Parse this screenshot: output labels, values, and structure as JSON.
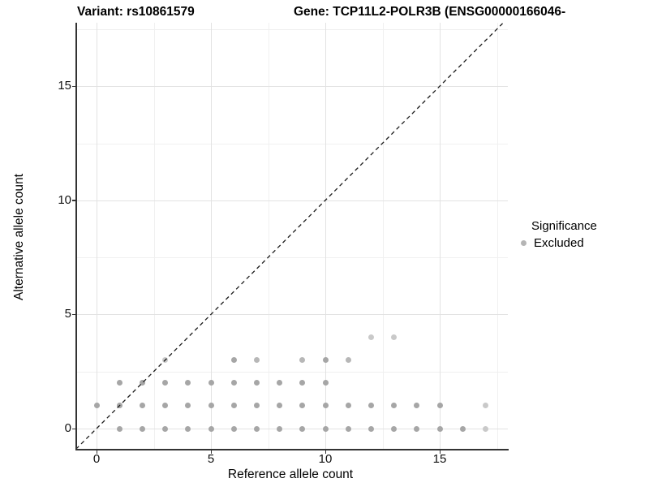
{
  "titles": {
    "left": "Variant: rs10861579",
    "right": "Gene: TCP11L2-POLR3B (ENSG00000166046-"
  },
  "chart_data": {
    "type": "scatter",
    "title_left": "Variant: rs10861579",
    "title_right": "Gene: TCP11L2-POLR3B (ENSG00000166046-",
    "xlabel": "Reference allele count",
    "ylabel": "Alternative allele count",
    "x_ticks": [
      0,
      5,
      10,
      15
    ],
    "y_ticks": [
      0,
      5,
      10,
      15
    ],
    "x_minor_gridlines": [
      2.5,
      7.5,
      12.5,
      17.5
    ],
    "y_minor_gridlines": [
      2.5,
      7.5,
      12.5,
      17.5
    ],
    "xlim": [
      -0.9,
      17.9
    ],
    "ylim": [
      -0.9,
      17.75
    ],
    "grid": true,
    "reference_line": {
      "kind": "identity-diagonal",
      "style": "dashed",
      "from": [
        -0.9,
        -0.9
      ],
      "to": [
        17.75,
        17.75
      ],
      "color": "#1a1a1a"
    },
    "legend": {
      "position": "right",
      "title": "Significance",
      "items": [
        {
          "label": "Excluded",
          "color": "#b5b5b5"
        }
      ]
    },
    "colors": {
      "point_medium": "#a6a6a6",
      "point_midlight": "#b7b7b7",
      "point_light": "#c9c9c9",
      "grid_major": "#e2e2e2",
      "grid_minor": "#f0f0f0",
      "axis_line": "#333333"
    },
    "points": [
      {
        "x": 1,
        "y": 0,
        "s": "m"
      },
      {
        "x": 2,
        "y": 0,
        "s": "m"
      },
      {
        "x": 3,
        "y": 0,
        "s": "m"
      },
      {
        "x": 4,
        "y": 0,
        "s": "m"
      },
      {
        "x": 5,
        "y": 0,
        "s": "m"
      },
      {
        "x": 6,
        "y": 0,
        "s": "m"
      },
      {
        "x": 7,
        "y": 0,
        "s": "m"
      },
      {
        "x": 8,
        "y": 0,
        "s": "m"
      },
      {
        "x": 9,
        "y": 0,
        "s": "m"
      },
      {
        "x": 10,
        "y": 0,
        "s": "m"
      },
      {
        "x": 11,
        "y": 0,
        "s": "m"
      },
      {
        "x": 12,
        "y": 0,
        "s": "m"
      },
      {
        "x": 13,
        "y": 0,
        "s": "m"
      },
      {
        "x": 14,
        "y": 0,
        "s": "m"
      },
      {
        "x": 15,
        "y": 0,
        "s": "m"
      },
      {
        "x": 16,
        "y": 0,
        "s": "m"
      },
      {
        "x": 17,
        "y": 0,
        "s": "l"
      },
      {
        "x": 0,
        "y": 1,
        "s": "m"
      },
      {
        "x": 1,
        "y": 1,
        "s": "m"
      },
      {
        "x": 2,
        "y": 1,
        "s": "m"
      },
      {
        "x": 3,
        "y": 1,
        "s": "m"
      },
      {
        "x": 4,
        "y": 1,
        "s": "m"
      },
      {
        "x": 5,
        "y": 1,
        "s": "m"
      },
      {
        "x": 6,
        "y": 1,
        "s": "m"
      },
      {
        "x": 7,
        "y": 1,
        "s": "m"
      },
      {
        "x": 8,
        "y": 1,
        "s": "m"
      },
      {
        "x": 9,
        "y": 1,
        "s": "m"
      },
      {
        "x": 10,
        "y": 1,
        "s": "m"
      },
      {
        "x": 11,
        "y": 1,
        "s": "m"
      },
      {
        "x": 12,
        "y": 1,
        "s": "m"
      },
      {
        "x": 13,
        "y": 1,
        "s": "m"
      },
      {
        "x": 14,
        "y": 1,
        "s": "m"
      },
      {
        "x": 15,
        "y": 1,
        "s": "m"
      },
      {
        "x": 17,
        "y": 1,
        "s": "l"
      },
      {
        "x": 1,
        "y": 2,
        "s": "m"
      },
      {
        "x": 2,
        "y": 2,
        "s": "m"
      },
      {
        "x": 3,
        "y": 2,
        "s": "m"
      },
      {
        "x": 4,
        "y": 2,
        "s": "m"
      },
      {
        "x": 5,
        "y": 2,
        "s": "m"
      },
      {
        "x": 6,
        "y": 2,
        "s": "m"
      },
      {
        "x": 7,
        "y": 2,
        "s": "m"
      },
      {
        "x": 8,
        "y": 2,
        "s": "m"
      },
      {
        "x": 9,
        "y": 2,
        "s": "m"
      },
      {
        "x": 10,
        "y": 2,
        "s": "m"
      },
      {
        "x": 3,
        "y": 3,
        "s": "l"
      },
      {
        "x": 6,
        "y": 3,
        "s": "m"
      },
      {
        "x": 7,
        "y": 3,
        "s": "ml"
      },
      {
        "x": 9,
        "y": 3,
        "s": "ml"
      },
      {
        "x": 10,
        "y": 3,
        "s": "m"
      },
      {
        "x": 11,
        "y": 3,
        "s": "ml"
      },
      {
        "x": 12,
        "y": 4,
        "s": "l"
      },
      {
        "x": 13,
        "y": 4,
        "s": "l"
      }
    ]
  }
}
